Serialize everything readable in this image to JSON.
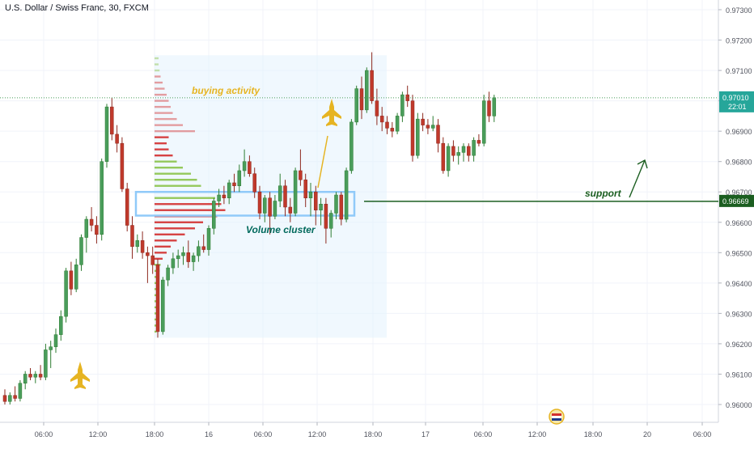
{
  "chart_data": {
    "type": "candlestick",
    "title": "U.S. Dollar / Swiss Franc, 30, FXCM",
    "y_axis": {
      "ticks": [
        "0.97300",
        "0.97200",
        "0.97100",
        "0.97000",
        "0.96900",
        "0.96800",
        "0.96700",
        "0.96600",
        "0.96500",
        "0.96400",
        "0.96300",
        "0.96200",
        "0.96100",
        "0.96000"
      ],
      "range": [
        0.9595,
        0.9735
      ],
      "position": "right"
    },
    "x_axis": {
      "ticks": [
        "06:00",
        "12:00",
        "18:00",
        "16",
        "06:00",
        "12:00",
        "18:00",
        "17",
        "06:00",
        "12:00",
        "18:00",
        "20",
        "06:00"
      ]
    },
    "last_price": {
      "value": "0.97010",
      "countdown": "22:01",
      "color": "#26a69a"
    },
    "support_level": {
      "value": "0.96669",
      "label": "support",
      "color": "#1b5e20"
    },
    "annotations": {
      "buying_activity": "buying activity",
      "volume_cluster": "Volume cluster"
    },
    "colors": {
      "up": "#4a9d5b",
      "down": "#c0392b",
      "up_wick": "#2e7d32",
      "down_wick": "#8e2a20",
      "profile_box": "#e3f2fd",
      "profile_up": "#8bc34a",
      "profile_down": "#d32f2f",
      "cluster_box": "#90caf9",
      "annotation_gold": "#e6b422",
      "annotation_teal": "#00695c"
    },
    "icons": [
      "jet-icon",
      "jet-icon",
      "up-arrow-icon",
      "flag-icon"
    ],
    "candles": [
      [
        0.9603,
        0.9605,
        0.96,
        0.9601
      ],
      [
        0.9601,
        0.9604,
        0.96,
        0.9603
      ],
      [
        0.9603,
        0.9606,
        0.9601,
        0.9602
      ],
      [
        0.9602,
        0.9608,
        0.9601,
        0.9607
      ],
      [
        0.9607,
        0.9611,
        0.9605,
        0.961
      ],
      [
        0.961,
        0.9612,
        0.9608,
        0.9609
      ],
      [
        0.9609,
        0.9611,
        0.9607,
        0.961
      ],
      [
        0.961,
        0.9613,
        0.9608,
        0.9609
      ],
      [
        0.9609,
        0.962,
        0.9608,
        0.9618
      ],
      [
        0.9618,
        0.9621,
        0.9612,
        0.9619
      ],
      [
        0.9619,
        0.9625,
        0.9617,
        0.9623
      ],
      [
        0.9623,
        0.9631,
        0.9621,
        0.9629
      ],
      [
        0.9629,
        0.9645,
        0.9627,
        0.9644
      ],
      [
        0.9644,
        0.9647,
        0.9636,
        0.9638
      ],
      [
        0.9638,
        0.9648,
        0.9637,
        0.9646
      ],
      [
        0.9646,
        0.9656,
        0.9644,
        0.9655
      ],
      [
        0.9655,
        0.9662,
        0.965,
        0.9661
      ],
      [
        0.9661,
        0.9665,
        0.9657,
        0.9659
      ],
      [
        0.9659,
        0.9662,
        0.9653,
        0.9656
      ],
      [
        0.9656,
        0.9681,
        0.9654,
        0.968
      ],
      [
        0.968,
        0.9699,
        0.9678,
        0.9698
      ],
      [
        0.9698,
        0.9701,
        0.9687,
        0.9689
      ],
      [
        0.9689,
        0.9692,
        0.9683,
        0.9686
      ],
      [
        0.9686,
        0.9688,
        0.967,
        0.9671
      ],
      [
        0.9671,
        0.9673,
        0.9657,
        0.9659
      ],
      [
        0.9659,
        0.9662,
        0.9648,
        0.9652
      ],
      [
        0.9652,
        0.9656,
        0.965,
        0.9654
      ],
      [
        0.9654,
        0.9657,
        0.9648,
        0.965
      ],
      [
        0.965,
        0.9652,
        0.964,
        0.9649
      ],
      [
        0.9649,
        0.9652,
        0.9643,
        0.9646
      ],
      [
        0.9646,
        0.9648,
        0.9622,
        0.9624
      ],
      [
        0.9624,
        0.9642,
        0.9623,
        0.9641
      ],
      [
        0.9641,
        0.9646,
        0.9639,
        0.9645
      ],
      [
        0.9645,
        0.965,
        0.9643,
        0.9648
      ],
      [
        0.9648,
        0.9651,
        0.9645,
        0.9649
      ],
      [
        0.9649,
        0.9652,
        0.9646,
        0.965
      ],
      [
        0.965,
        0.9654,
        0.9645,
        0.9647
      ],
      [
        0.9647,
        0.965,
        0.9644,
        0.9649
      ],
      [
        0.9649,
        0.9654,
        0.9647,
        0.9652
      ],
      [
        0.9652,
        0.9656,
        0.965,
        0.9651
      ],
      [
        0.9651,
        0.9659,
        0.9649,
        0.9658
      ],
      [
        0.9658,
        0.9668,
        0.9656,
        0.9667
      ],
      [
        0.9667,
        0.9671,
        0.9665,
        0.9669
      ],
      [
        0.9669,
        0.9672,
        0.9666,
        0.9668
      ],
      [
        0.9668,
        0.9674,
        0.9666,
        0.9673
      ],
      [
        0.9673,
        0.9676,
        0.967,
        0.9672
      ],
      [
        0.9672,
        0.9679,
        0.967,
        0.9677
      ],
      [
        0.9677,
        0.9684,
        0.9675,
        0.968
      ],
      [
        0.968,
        0.9682,
        0.9675,
        0.9676
      ],
      [
        0.9676,
        0.9678,
        0.9668,
        0.967
      ],
      [
        0.967,
        0.9672,
        0.9661,
        0.9663
      ],
      [
        0.9663,
        0.9669,
        0.966,
        0.9668
      ],
      [
        0.9668,
        0.967,
        0.9656,
        0.9662
      ],
      [
        0.9662,
        0.9669,
        0.9661,
        0.9667
      ],
      [
        0.9667,
        0.9676,
        0.9665,
        0.9672
      ],
      [
        0.9672,
        0.9674,
        0.9662,
        0.9665
      ],
      [
        0.9665,
        0.9668,
        0.966,
        0.9663
      ],
      [
        0.9663,
        0.9678,
        0.9662,
        0.9677
      ],
      [
        0.9677,
        0.9684,
        0.9672,
        0.9674
      ],
      [
        0.9674,
        0.9676,
        0.9665,
        0.9668
      ],
      [
        0.9668,
        0.9673,
        0.9662,
        0.967
      ],
      [
        0.967,
        0.9672,
        0.9659,
        0.9664
      ],
      [
        0.9664,
        0.9668,
        0.9659,
        0.9666
      ],
      [
        0.9666,
        0.9668,
        0.9653,
        0.9658
      ],
      [
        0.9658,
        0.9664,
        0.9655,
        0.9663
      ],
      [
        0.9663,
        0.967,
        0.9661,
        0.9669
      ],
      [
        0.9669,
        0.967,
        0.9659,
        0.9661
      ],
      [
        0.9661,
        0.9678,
        0.966,
        0.9677
      ],
      [
        0.9677,
        0.9694,
        0.9676,
        0.9693
      ],
      [
        0.9693,
        0.9705,
        0.9692,
        0.9704
      ],
      [
        0.9704,
        0.9708,
        0.9694,
        0.9697
      ],
      [
        0.9697,
        0.9711,
        0.9696,
        0.971
      ],
      [
        0.971,
        0.9716,
        0.9699,
        0.97
      ],
      [
        0.97,
        0.9704,
        0.9692,
        0.9695
      ],
      [
        0.9695,
        0.9698,
        0.969,
        0.9693
      ],
      [
        0.9693,
        0.9695,
        0.9689,
        0.9691
      ],
      [
        0.9691,
        0.9693,
        0.9688,
        0.969
      ],
      [
        0.969,
        0.9696,
        0.9689,
        0.9695
      ],
      [
        0.9695,
        0.9703,
        0.9693,
        0.9702
      ],
      [
        0.9702,
        0.9705,
        0.9698,
        0.97
      ],
      [
        0.97,
        0.9702,
        0.968,
        0.9682
      ],
      [
        0.9682,
        0.9696,
        0.9681,
        0.9694
      ],
      [
        0.9694,
        0.9696,
        0.969,
        0.9692
      ],
      [
        0.9692,
        0.9694,
        0.9689,
        0.9691
      ],
      [
        0.9691,
        0.9695,
        0.969,
        0.9692
      ],
      [
        0.9692,
        0.9694,
        0.9683,
        0.9686
      ],
      [
        0.9686,
        0.9688,
        0.9676,
        0.9677
      ],
      [
        0.9677,
        0.9686,
        0.9675,
        0.9685
      ],
      [
        0.9685,
        0.9687,
        0.968,
        0.9682
      ],
      [
        0.9682,
        0.9685,
        0.9679,
        0.9683
      ],
      [
        0.9683,
        0.9686,
        0.968,
        0.9685
      ],
      [
        0.9685,
        0.9686,
        0.968,
        0.9682
      ],
      [
        0.9682,
        0.9688,
        0.968,
        0.9687
      ],
      [
        0.9687,
        0.9689,
        0.9685,
        0.9686
      ],
      [
        0.9686,
        0.9702,
        0.9685,
        0.97
      ],
      [
        0.97,
        0.9703,
        0.9693,
        0.9695
      ],
      [
        0.9695,
        0.9702,
        0.9693,
        0.9701
      ]
    ],
    "volume_profile": [
      [
        0.9714,
        4,
        "up"
      ],
      [
        0.9712,
        4,
        "up"
      ],
      [
        0.971,
        5,
        "up"
      ],
      [
        0.9708,
        6,
        "down"
      ],
      [
        0.9706,
        8,
        "down"
      ],
      [
        0.9704,
        10,
        "down"
      ],
      [
        0.9702,
        12,
        "down"
      ],
      [
        0.97,
        14,
        "down"
      ],
      [
        0.9698,
        16,
        "down"
      ],
      [
        0.9696,
        18,
        "down"
      ],
      [
        0.9694,
        22,
        "down"
      ],
      [
        0.9692,
        28,
        "down"
      ],
      [
        0.969,
        40,
        "down"
      ],
      [
        0.9688,
        14,
        "down"
      ],
      [
        0.9686,
        12,
        "down"
      ],
      [
        0.9684,
        14,
        "down"
      ],
      [
        0.9682,
        18,
        "down"
      ],
      [
        0.968,
        22,
        "up"
      ],
      [
        0.9678,
        28,
        "up"
      ],
      [
        0.9676,
        36,
        "up"
      ],
      [
        0.9674,
        42,
        "up"
      ],
      [
        0.9672,
        46,
        "up"
      ],
      [
        0.967,
        52,
        "up"
      ],
      [
        0.9668,
        60,
        "up"
      ],
      [
        0.9666,
        66,
        "down"
      ],
      [
        0.9664,
        70,
        "down"
      ],
      [
        0.9662,
        62,
        "down"
      ],
      [
        0.966,
        48,
        "down"
      ],
      [
        0.9658,
        40,
        "down"
      ],
      [
        0.9656,
        30,
        "down"
      ],
      [
        0.9654,
        22,
        "down"
      ],
      [
        0.9652,
        16,
        "down"
      ],
      [
        0.965,
        12,
        "down"
      ],
      [
        0.9648,
        8,
        "down"
      ],
      [
        0.9646,
        6,
        "up"
      ],
      [
        0.9644,
        5,
        "up"
      ],
      [
        0.9642,
        4,
        "up"
      ],
      [
        0.964,
        4,
        "up"
      ],
      [
        0.9638,
        3,
        "up"
      ],
      [
        0.9636,
        3,
        "up"
      ],
      [
        0.9634,
        3,
        "up"
      ],
      [
        0.9632,
        3,
        "up"
      ],
      [
        0.963,
        2,
        "up"
      ],
      [
        0.9628,
        2,
        "up"
      ],
      [
        0.9626,
        2,
        "up"
      ],
      [
        0.9624,
        2,
        "up"
      ]
    ]
  }
}
